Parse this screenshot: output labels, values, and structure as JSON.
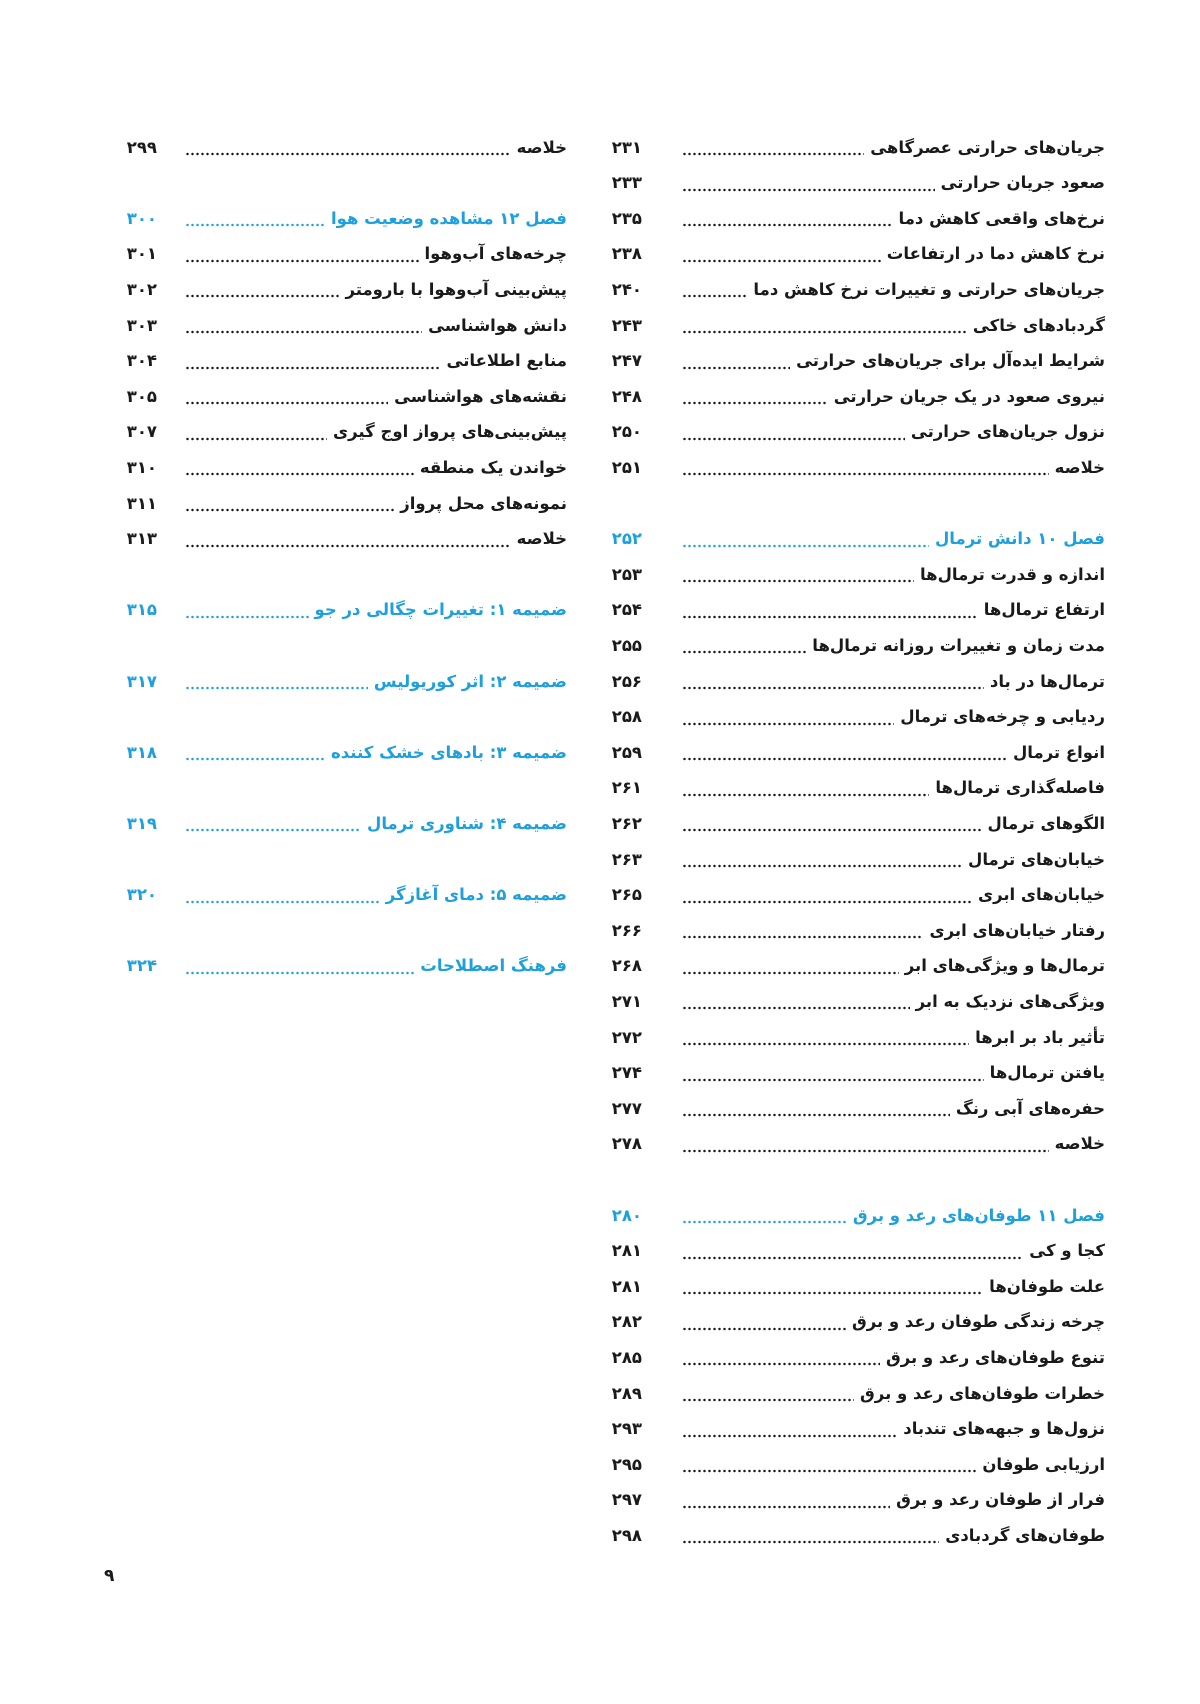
{
  "colors": {
    "chapter": "#1ea0dc",
    "text": "#1a1a1a"
  },
  "right_column": [
    {
      "slot": 0,
      "title": "جریان‌های حرارتی عصرگاهی",
      "page": "۲۳۱"
    },
    {
      "slot": 1,
      "title": "صعود جریان حرارتی",
      "page": "۲۳۳"
    },
    {
      "slot": 2,
      "title": "نرخ‌های واقعی کاهش دما",
      "page": "۲۳۵"
    },
    {
      "slot": 3,
      "title": "نرخ کاهش دما در ارتفاعات",
      "page": "۲۳۸"
    },
    {
      "slot": 4,
      "title": "جریان‌های حرارتی و تغییرات نرخ کاهش دما",
      "page": "۲۴۰"
    },
    {
      "slot": 5,
      "title": "گردبادهای خاکی",
      "page": "۲۴۳"
    },
    {
      "slot": 6,
      "title": "شرایط ایده‌آل برای جریان‌های حرارتی",
      "page": "۲۴۷"
    },
    {
      "slot": 7,
      "title": "نیروی صعود در یک جریان حرارتی",
      "page": "۲۴۸"
    },
    {
      "slot": 8,
      "title": "نزول جریان‌های حرارتی",
      "page": "۲۵۰"
    },
    {
      "slot": 9,
      "title": "خلاصه",
      "page": "۲۵۱"
    },
    {
      "slot": 11,
      "title": "فصل ۱۰ دانش ترمال",
      "page": "۲۵۲",
      "chapter": true
    },
    {
      "slot": 12,
      "title": "اندازه و قدرت ترمال‌ها",
      "page": "۲۵۳"
    },
    {
      "slot": 13,
      "title": "ارتفاع ترمال‌ها",
      "page": "۲۵۴"
    },
    {
      "slot": 14,
      "title": "مدت زمان و تغییرات روزانه ترمال‌ها",
      "page": "۲۵۵"
    },
    {
      "slot": 15,
      "title": "ترمال‌ها در باد",
      "page": "۲۵۶"
    },
    {
      "slot": 16,
      "title": "ردیابی و چرخه‌های ترمال",
      "page": "۲۵۸"
    },
    {
      "slot": 17,
      "title": "انواع ترمال",
      "page": "۲۵۹"
    },
    {
      "slot": 18,
      "title": "فاصله‌گذاری ترمال‌ها",
      "page": "۲۶۱"
    },
    {
      "slot": 19,
      "title": "الگوهای ترمال",
      "page": "۲۶۲"
    },
    {
      "slot": 20,
      "title": "خیابان‌های ترمال",
      "page": "۲۶۳"
    },
    {
      "slot": 21,
      "title": "خیابان‌های ابری",
      "page": "۲۶۵"
    },
    {
      "slot": 22,
      "title": "رفتار خیابان‌های ابری",
      "page": "۲۶۶"
    },
    {
      "slot": 23,
      "title": "ترمال‌ها و ویژگی‌های ابر",
      "page": "۲۶۸"
    },
    {
      "slot": 24,
      "title": "ویژگی‌های نزدیک به ابر",
      "page": "۲۷۱"
    },
    {
      "slot": 25,
      "title": "تأثیر باد بر ابرها",
      "page": "۲۷۲"
    },
    {
      "slot": 26,
      "title": "یافتن ترمال‌ها",
      "page": "۲۷۴"
    },
    {
      "slot": 27,
      "title": "حفره‌های آبی رنگ",
      "page": "۲۷۷"
    },
    {
      "slot": 28,
      "title": "خلاصه",
      "page": "۲۷۸"
    },
    {
      "slot": 30,
      "title": "فصل ۱۱ طوفان‌های رعد و برق",
      "page": "۲۸۰",
      "chapter": true
    },
    {
      "slot": 31,
      "title": "کجا و کی",
      "page": "۲۸۱"
    },
    {
      "slot": 32,
      "title": "علت طوفان‌ها",
      "page": "۲۸۱"
    },
    {
      "slot": 33,
      "title": "چرخه زندگی طوفان رعد و برق",
      "page": "۲۸۲"
    },
    {
      "slot": 34,
      "title": "تنوع طوفان‌های رعد و برق",
      "page": "۲۸۵"
    },
    {
      "slot": 35,
      "title": "خطرات طوفان‌های رعد و برق",
      "page": "۲۸۹"
    },
    {
      "slot": 36,
      "title": "نزول‌ها و جبهه‌های تندباد",
      "page": "۲۹۳"
    },
    {
      "slot": 37,
      "title": "ارزیابی طوفان",
      "page": "۲۹۵"
    },
    {
      "slot": 38,
      "title": "فرار از طوفان رعد و برق",
      "page": "۲۹۷"
    },
    {
      "slot": 39,
      "title": "طوفان‌های گردبادی",
      "page": "۲۹۸"
    }
  ],
  "left_column": [
    {
      "slot": 0,
      "title": "خلاصه",
      "page": "۲۹۹"
    },
    {
      "slot": 2,
      "title": "فصل ۱۲ مشاهده وضعیت هوا",
      "page": "۳۰۰",
      "chapter": true
    },
    {
      "slot": 3,
      "title": "چرخه‌های آب‌وهوا",
      "page": "۳۰۱"
    },
    {
      "slot": 4,
      "title": "پیش‌بینی آب‌وهوا با بارومتر",
      "page": "۳۰۲"
    },
    {
      "slot": 5,
      "title": "دانش هواشناسی",
      "page": "۳۰۳"
    },
    {
      "slot": 6,
      "title": "منابع اطلاعاتی",
      "page": "۳۰۴"
    },
    {
      "slot": 7,
      "title": "نقشه‌های هواشناسی",
      "page": "۳۰۵"
    },
    {
      "slot": 8,
      "title": "پیش‌بینی‌های پرواز اوج گیری",
      "page": "۳۰۷"
    },
    {
      "slot": 9,
      "title": "خواندن یک منطقه",
      "page": "۳۱۰"
    },
    {
      "slot": 10,
      "title": "نمونه‌های محل پرواز",
      "page": "۳۱۱"
    },
    {
      "slot": 11,
      "title": "خلاصه",
      "page": "۳۱۳"
    },
    {
      "slot": 13,
      "title": "ضمیمه ۱: تغییرات چگالی در جو",
      "page": "۳۱۵",
      "chapter": true
    },
    {
      "slot": 15,
      "title": "ضمیمه ۲: اثر کوریولیس",
      "page": "۳۱۷",
      "chapter": true
    },
    {
      "slot": 17,
      "title": "ضمیمه ۳: بادهای خشک کننده",
      "page": "۳۱۸",
      "chapter": true
    },
    {
      "slot": 19,
      "title": "ضمیمه ۴: شناوری ترمال",
      "page": "۳۱۹",
      "chapter": true
    },
    {
      "slot": 21,
      "title": "ضمیمه ۵: دمای آغازگر",
      "page": "۳۲۰",
      "chapter": true
    },
    {
      "slot": 23,
      "title": "فرهنگ اصطلاحات",
      "page": "۳۲۴",
      "chapter": true
    }
  ],
  "page_number": "۹"
}
